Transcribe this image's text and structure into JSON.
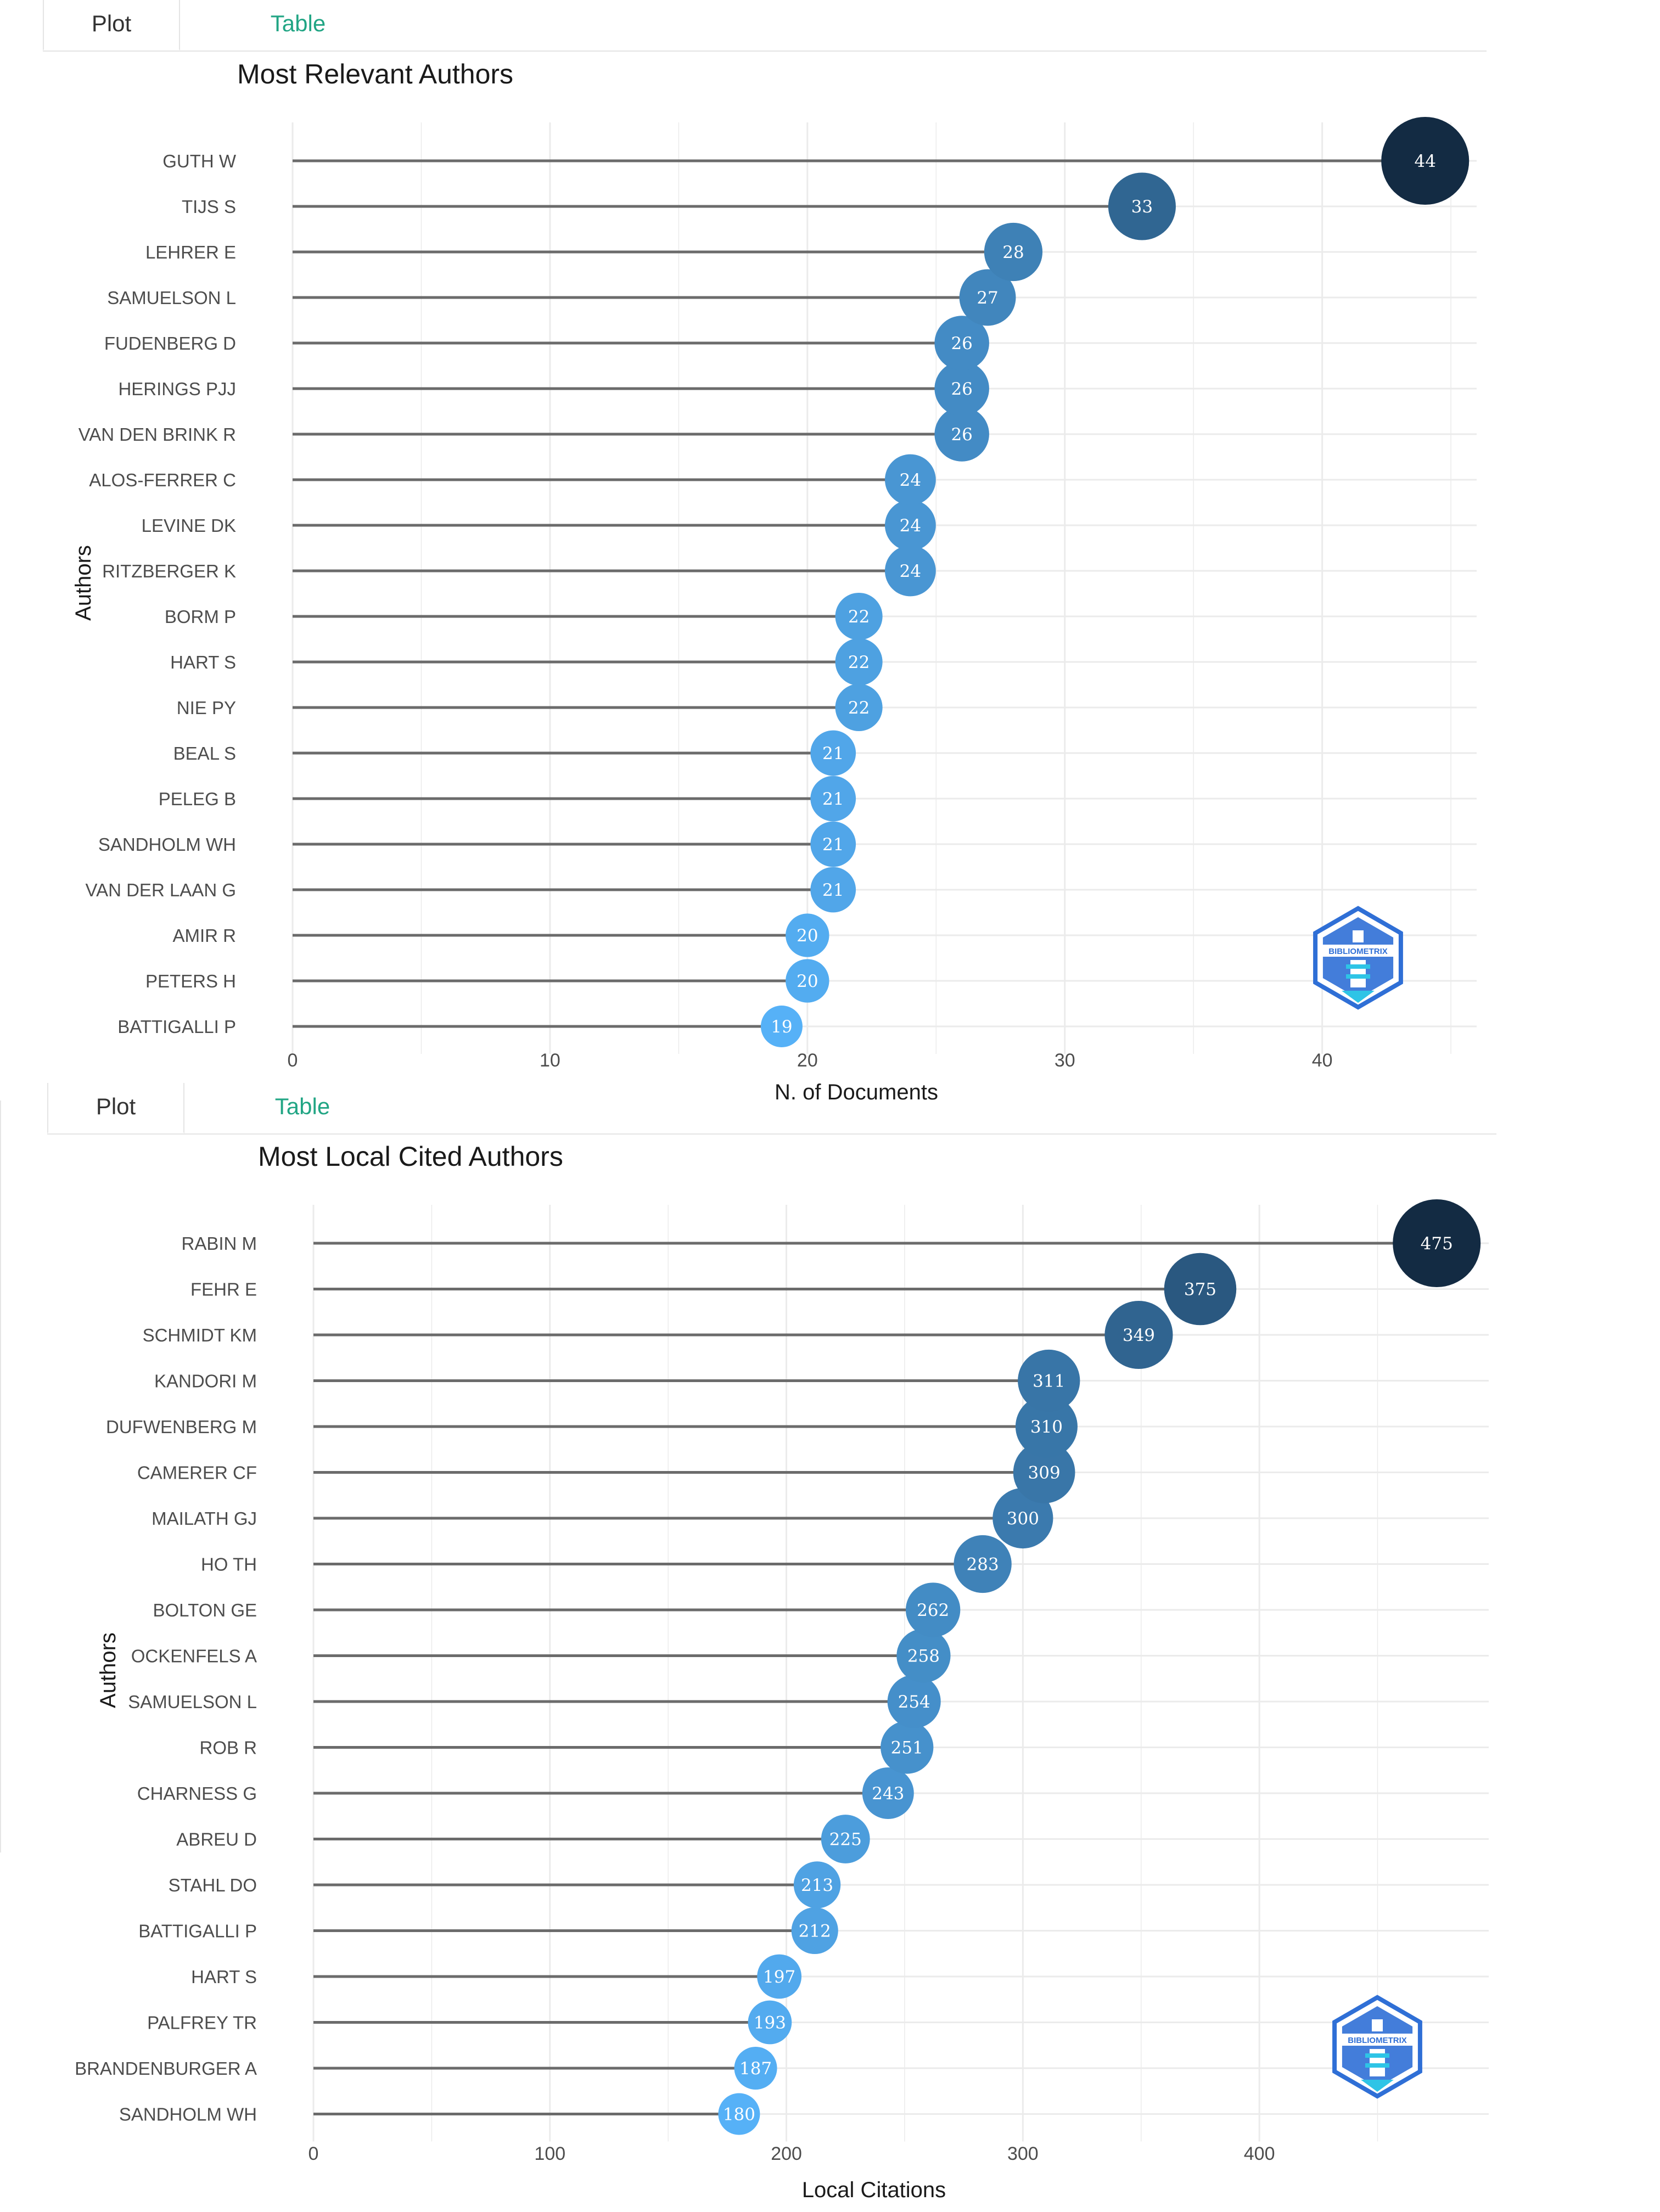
{
  "panels": [
    {
      "tabs": {
        "plot_label": "Plot",
        "table_label": "Table"
      },
      "logo_text": "BIBLIOMETRIX"
    },
    {
      "tabs": {
        "plot_label": "Plot",
        "table_label": "Table"
      },
      "logo_text": "BIBLIOMETRIX"
    }
  ],
  "colors": {
    "bubble_low": "#56B1F7",
    "bubble_high": "#132B43",
    "segment": "#6b6b6b",
    "grid": "#ebebeb",
    "tab_active_text": "#333333",
    "tab_inactive_text": "#21a584",
    "logo_blue": "#2f6fd6",
    "logo_cyan": "#2ec4e6"
  },
  "chart_data": [
    {
      "type": "scatter",
      "title": "Most Relevant Authors",
      "xlabel": "N. of Documents",
      "ylabel": "Authors",
      "xlim": [
        0,
        46
      ],
      "xticks": [
        0,
        10,
        20,
        30,
        40
      ],
      "categories": [
        "GUTH W",
        "TIJS S",
        "LEHRER E",
        "SAMUELSON L",
        "FUDENBERG D",
        "HERINGS PJJ",
        "VAN DEN BRINK R",
        "ALOS-FERRER C",
        "LEVINE DK",
        "RITZBERGER K",
        "BORM P",
        "HART S",
        "NIE PY",
        "BEAL S",
        "PELEG B",
        "SANDHOLM WH",
        "VAN DER LAAN G",
        "AMIR R",
        "PETERS H",
        "BATTIGALLI P"
      ],
      "values": [
        44,
        33,
        28,
        27,
        26,
        26,
        26,
        24,
        24,
        24,
        22,
        22,
        22,
        21,
        21,
        21,
        21,
        20,
        20,
        19
      ],
      "grid": true
    },
    {
      "type": "scatter",
      "title": "Most Local Cited Authors",
      "xlabel": "Local Citations",
      "ylabel": "Authors",
      "xlim": [
        0,
        497
      ],
      "xticks": [
        0,
        100,
        200,
        300,
        400
      ],
      "categories": [
        "RABIN M",
        "FEHR E",
        "SCHMIDT KM",
        "KANDORI M",
        "DUFWENBERG M",
        "CAMERER CF",
        "MAILATH GJ",
        "HO TH",
        "BOLTON GE",
        "OCKENFELS A",
        "SAMUELSON L",
        "ROB R",
        "CHARNESS G",
        "ABREU D",
        "STAHL DO",
        "BATTIGALLI P",
        "HART S",
        "PALFREY TR",
        "BRANDENBURGER A",
        "SANDHOLM WH"
      ],
      "values": [
        475,
        375,
        349,
        311,
        310,
        309,
        300,
        283,
        262,
        258,
        254,
        251,
        243,
        225,
        213,
        212,
        197,
        193,
        187,
        180
      ],
      "grid": true
    }
  ]
}
